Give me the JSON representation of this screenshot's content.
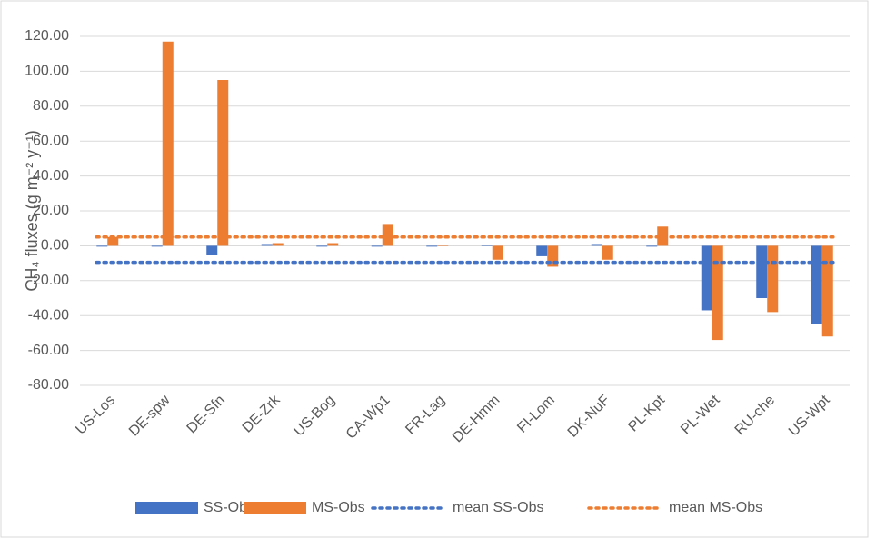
{
  "chart_data": {
    "type": "bar",
    "y_label": "CH₄ fluxes (g m⁻² y⁻¹)",
    "categories": [
      "US-Los",
      "DE-spw",
      "DE-Sfn",
      "DE-Zrk",
      "US-Bog",
      "CA-Wp1",
      "FR-Lag",
      "DE-Hmm",
      "FI-Lom",
      "DK-NuF",
      "PL-Kpt",
      "PL-Wet",
      "RU-che",
      "US-Wpt"
    ],
    "series": [
      {
        "name": "SS-Obs",
        "color": "#4472c4",
        "values": [
          -0.5,
          -0.5,
          -5,
          1,
          -0.5,
          -0.5,
          -0.5,
          0,
          -6,
          1,
          -0.5,
          -37,
          -30,
          -45
        ]
      },
      {
        "name": "MS-Obs",
        "color": "#ed7d31",
        "values": [
          5,
          117,
          95,
          1.5,
          1.5,
          12.5,
          0,
          -8,
          -12,
          -8,
          11,
          -54,
          -38,
          -52
        ]
      }
    ],
    "mean_lines": [
      {
        "name": "mean SS-Obs",
        "color": "#4472c4",
        "value": -9.5
      },
      {
        "name": "mean MS-Obs",
        "color": "#ed7d31",
        "value": 5
      }
    ],
    "ylim": [
      -80,
      120
    ],
    "yticks": [
      {
        "value": -80,
        "label": "-80.00"
      },
      {
        "value": -60,
        "label": "-60.00"
      },
      {
        "value": -40,
        "label": "-40.00"
      },
      {
        "value": -20,
        "label": "-20.00"
      },
      {
        "value": 0,
        "label": "0.00"
      },
      {
        "value": 20,
        "label": "20.00"
      },
      {
        "value": 40,
        "label": "40.00"
      },
      {
        "value": 60,
        "label": "60.00"
      },
      {
        "value": 80,
        "label": "80.00"
      },
      {
        "value": 100,
        "label": "100.00"
      },
      {
        "value": 120,
        "label": "120.00"
      }
    ],
    "grid": true
  }
}
